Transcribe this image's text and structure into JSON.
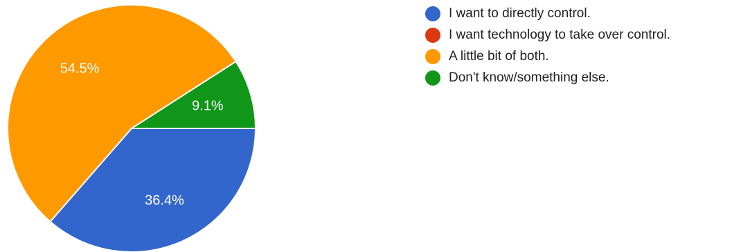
{
  "chart_data": {
    "type": "pie",
    "title": "",
    "slices": [
      {
        "label": "I want to directly control.",
        "value": 36.4,
        "value_label": "36.4%",
        "color": "#3366cc"
      },
      {
        "label": "I want technology to take over control.",
        "value": 0,
        "value_label": "",
        "color": "#dc3912"
      },
      {
        "label": "A little bit of both.",
        "value": 54.5,
        "value_label": "54.5%",
        "color": "#ff9900"
      },
      {
        "label": "Don't know/something else.",
        "value": 9.1,
        "value_label": "9.1%",
        "color": "#109618"
      }
    ],
    "legend_position": "right"
  }
}
